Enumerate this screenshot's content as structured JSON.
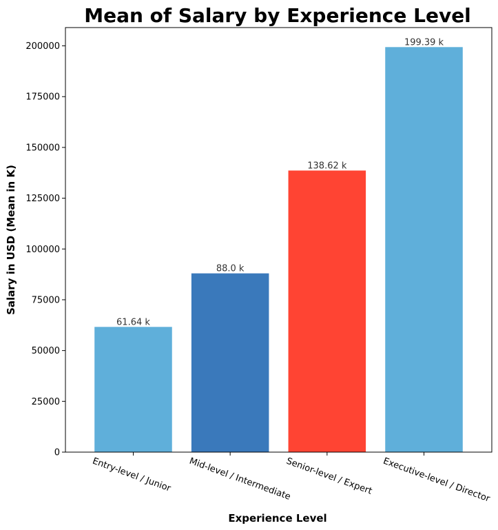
{
  "chart_data": {
    "type": "bar",
    "title": "Mean of Salary by Experience Level",
    "xlabel": "Experience Level",
    "ylabel": "Salary in USD (Mean in K)",
    "categories": [
      "Entry-level / Junior",
      "Mid-level / Intermediate",
      "Senior-level / Expert",
      "Executive-level / Director"
    ],
    "values": [
      61640,
      88000,
      138620,
      199390
    ],
    "data_labels": [
      "61.64 k",
      "88.0 k",
      "138.62 k",
      "199.39 k"
    ],
    "colors": [
      "#5fafda",
      "#3a79bb",
      "#ff4433",
      "#5fafda"
    ],
    "yticks": [
      0,
      25000,
      50000,
      75000,
      100000,
      125000,
      150000,
      175000,
      200000
    ],
    "ylim": [
      0,
      209000
    ],
    "grid": false,
    "legend": false
  }
}
